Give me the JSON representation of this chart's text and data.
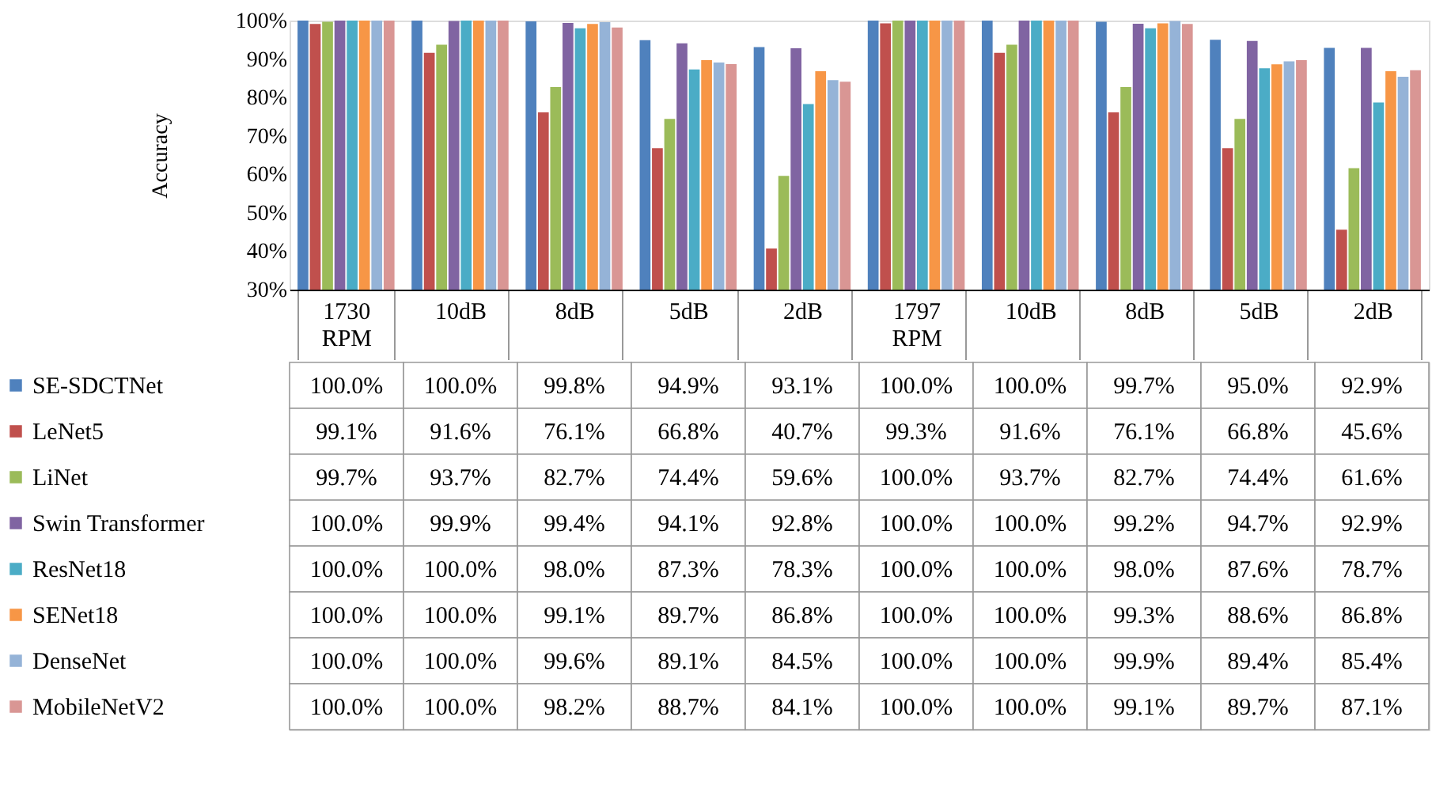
{
  "chart_data": {
    "type": "bar",
    "ylabel": "Accuracy",
    "categories": [
      "1730 RPM",
      "10dB",
      "8dB",
      "5dB",
      "2dB",
      "1797 RPM",
      "10dB",
      "8dB",
      "5dB",
      "2dB"
    ],
    "ylim": [
      30,
      100
    ],
    "yticks": [
      {
        "value": 30,
        "label": "30%"
      },
      {
        "value": 40,
        "label": "40%"
      },
      {
        "value": 50,
        "label": "50%"
      },
      {
        "value": 60,
        "label": "60%"
      },
      {
        "value": 70,
        "label": "70%"
      },
      {
        "value": 80,
        "label": "80%"
      },
      {
        "value": 90,
        "label": "90%"
      },
      {
        "value": 100,
        "label": "100%"
      }
    ],
    "grid": false,
    "legend": "bottom",
    "series": [
      {
        "name": "SE-SDCTNet",
        "color": "#4f81bd",
        "values": [
          100.0,
          100.0,
          99.8,
          94.9,
          93.1,
          100.0,
          100.0,
          99.7,
          95.0,
          92.9
        ],
        "value_labels": [
          "100.0%",
          "100.0%",
          "99.8%",
          "94.9%",
          "93.1%",
          "100.0%",
          "100.0%",
          "99.7%",
          "95.0%",
          "92.9%"
        ]
      },
      {
        "name": "LeNet5",
        "color": "#c0504d",
        "values": [
          99.1,
          91.6,
          76.1,
          66.8,
          40.7,
          99.3,
          91.6,
          76.1,
          66.8,
          45.6
        ],
        "value_labels": [
          "99.1%",
          "91.6%",
          "76.1%",
          "66.8%",
          "40.7%",
          "99.3%",
          "91.6%",
          "76.1%",
          "66.8%",
          "45.6%"
        ]
      },
      {
        "name": "LiNet",
        "color": "#9bbb59",
        "values": [
          99.7,
          93.7,
          82.7,
          74.4,
          59.6,
          100.0,
          93.7,
          82.7,
          74.4,
          61.6
        ],
        "value_labels": [
          "99.7%",
          "93.7%",
          "82.7%",
          "74.4%",
          "59.6%",
          "100.0%",
          "93.7%",
          "82.7%",
          "74.4%",
          "61.6%"
        ]
      },
      {
        "name": "Swin Transformer",
        "color": "#8064a2",
        "values": [
          100.0,
          99.9,
          99.4,
          94.1,
          92.8,
          100.0,
          100.0,
          99.2,
          94.7,
          92.9
        ],
        "value_labels": [
          "100.0%",
          "99.9%",
          "99.4%",
          "94.1%",
          "92.8%",
          "100.0%",
          "100.0%",
          "99.2%",
          "94.7%",
          "92.9%"
        ]
      },
      {
        "name": "ResNet18",
        "color": "#4bacc6",
        "values": [
          100.0,
          100.0,
          98.0,
          87.3,
          78.3,
          100.0,
          100.0,
          98.0,
          87.6,
          78.7
        ],
        "value_labels": [
          "100.0%",
          "100.0%",
          "98.0%",
          "87.3%",
          "78.3%",
          "100.0%",
          "100.0%",
          "98.0%",
          "87.6%",
          "78.7%"
        ]
      },
      {
        "name": "SENet18",
        "color": "#f79646",
        "values": [
          100.0,
          100.0,
          99.1,
          89.7,
          86.8,
          100.0,
          100.0,
          99.3,
          88.6,
          86.8
        ],
        "value_labels": [
          "100.0%",
          "100.0%",
          "99.1%",
          "89.7%",
          "86.8%",
          "100.0%",
          "100.0%",
          "99.3%",
          "88.6%",
          "86.8%"
        ]
      },
      {
        "name": "DenseNet",
        "color": "#95b3d7",
        "values": [
          100.0,
          100.0,
          99.6,
          89.1,
          84.5,
          100.0,
          100.0,
          99.9,
          89.4,
          85.4
        ],
        "value_labels": [
          "100.0%",
          "100.0%",
          "99.6%",
          "89.1%",
          "84.5%",
          "100.0%",
          "100.0%",
          "99.9%",
          "89.4%",
          "85.4%"
        ]
      },
      {
        "name": "MobileNetV2",
        "color": "#d99694",
        "values": [
          100.0,
          100.0,
          98.2,
          88.7,
          84.1,
          100.0,
          100.0,
          99.1,
          89.7,
          87.1
        ],
        "value_labels": [
          "100.0%",
          "100.0%",
          "98.2%",
          "88.7%",
          "84.1%",
          "100.0%",
          "100.0%",
          "99.1%",
          "89.7%",
          "87.1%"
        ]
      }
    ]
  }
}
